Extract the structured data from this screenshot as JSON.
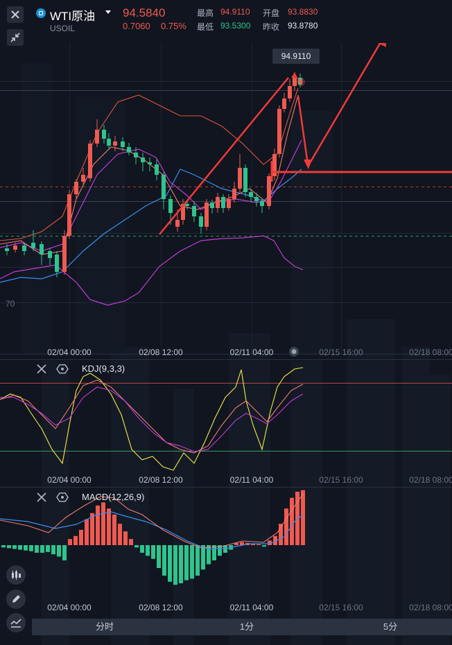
{
  "header": {
    "symbol": "WTI原油",
    "code": "USOIL",
    "last_price": "94.5840",
    "change": "0.7060",
    "change_percent": "0.75%",
    "stats": {
      "high_label": "最高",
      "high": "94.9110",
      "open_label": "开盘",
      "open": "93.8830",
      "low_label": "最低",
      "low": "93.5300",
      "prev_close_label": "昨收",
      "prev_close": "93.8780"
    }
  },
  "main_chart": {
    "price_tag": "94.9110",
    "axis_label_left": "70",
    "x_labels": [
      "02/04 00:00",
      "02/08 12:00",
      "02/11 04:00",
      "02/15 16:00",
      "02/18 08:00"
    ]
  },
  "kdj_panel": {
    "indicator": "KDJ(9,3,3)",
    "x_labels": [
      "02/04 00:00",
      "02/08 12:00",
      "02/11 04:00",
      "02/15 16:00",
      "02/18 08:00"
    ]
  },
  "macd_panel": {
    "indicator": "MACD(12,26,9)",
    "x_labels": [
      "02/04 00:00",
      "02/08 12:00",
      "02/11 04:00",
      "02/15 16:00",
      "02/18 08:00"
    ]
  },
  "timeframe_tabs": [
    "分时",
    "1分",
    "5分"
  ],
  "colors": {
    "up": "#f05a50",
    "down": "#2fc48d",
    "background": "#10151f",
    "boll_upper": "#e0543f",
    "ma_short": "#f07b74",
    "ma_mid": "#c23bd6",
    "ma_long": "#3d8ef0",
    "k_line": "#f5e94a",
    "d_line": "#f07b74",
    "j_line": "#c23bd6",
    "annotation": "#f23a37"
  },
  "icons": {
    "close": "close-icon",
    "collapse": "collapse-arrows-icon",
    "candles": "candlestick-icon",
    "draw": "pencil-icon",
    "indicator": "indicator-icon",
    "settings": "hexagon-gear-icon"
  }
}
